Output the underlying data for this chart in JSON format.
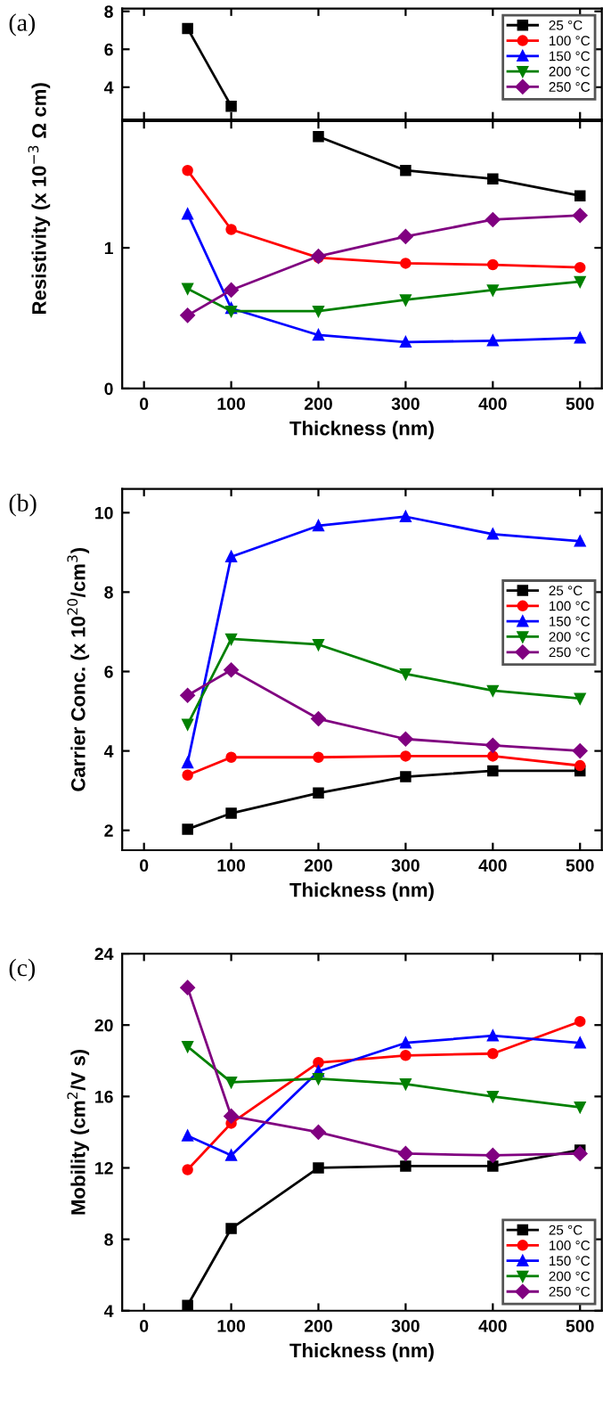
{
  "chart_data": [
    {
      "type": "line",
      "annotations": [
        "(a)"
      ],
      "xlim": [
        -25,
        525
      ],
      "xticks": [
        0,
        100,
        200,
        300,
        400,
        500
      ],
      "ylim": [
        2.3,
        8.15
      ],
      "yticks": [
        4,
        6,
        8
      ],
      "tick_labels": "y",
      "legend": "top right",
      "series": [
        {
          "name": "25 °C",
          "color": "#000000",
          "marker": "square",
          "x": [
            50,
            100
          ],
          "values": [
            7.1,
            3.0
          ]
        },
        {
          "name": "100 °C",
          "color": "#ff0000",
          "marker": "circle"
        },
        {
          "name": "150 °C",
          "color": "#0000ff",
          "marker": "triangle"
        },
        {
          "name": "200 °C",
          "color": "#008000",
          "marker": "triangle_down"
        },
        {
          "name": "250 °C",
          "color": "#800080",
          "marker": "diamond"
        }
      ]
    },
    {
      "type": "line",
      "xlabel": "Thickness (nm)",
      "ylabel": "Resistivity (x 10$^{−3}$ Ω cm)",
      "x": [
        50,
        100,
        200,
        300,
        400,
        500
      ],
      "xlim": [
        -25,
        525
      ],
      "xticks": [
        0,
        100,
        200,
        300,
        400,
        500
      ],
      "ylim": [
        0,
        1.9
      ],
      "yticks": [
        0,
        1
      ],
      "series": [
        {
          "color": "#000000",
          "marker": "square",
          "values": [
            null,
            null,
            1.79,
            1.55,
            1.49,
            1.37
          ]
        },
        {
          "color": "#ff0000",
          "marker": "circle",
          "values": [
            1.55,
            1.13,
            0.93,
            0.89,
            0.88,
            0.86
          ]
        },
        {
          "color": "#0000ff",
          "marker": "triangle",
          "values": [
            1.24,
            0.57,
            0.38,
            0.33,
            0.34,
            0.36
          ]
        },
        {
          "color": "#008000",
          "marker": "triangle_down",
          "values": [
            0.71,
            0.55,
            0.55,
            0.63,
            0.7,
            0.76
          ]
        },
        {
          "color": "#800080",
          "marker": "diamond",
          "values": [
            0.52,
            0.7,
            0.94,
            1.08,
            1.2,
            1.23
          ]
        }
      ]
    },
    {
      "type": "line",
      "annotations": [
        "(b)"
      ],
      "xlabel": "Thickness (nm)",
      "ylabel": "Carrier Conc. (x 10$^{20}$/cm$^{3}$)",
      "x": [
        50,
        100,
        200,
        300,
        400,
        500
      ],
      "xlim": [
        -25,
        525
      ],
      "xticks": [
        0,
        100,
        200,
        300,
        400,
        500
      ],
      "ylim": [
        1.5,
        10.6
      ],
      "yticks": [
        2,
        4,
        6,
        8,
        10
      ],
      "legend": "right",
      "series": [
        {
          "name": "25 °C",
          "color": "#000000",
          "marker": "square",
          "values": [
            2.03,
            2.43,
            2.94,
            3.35,
            3.5,
            3.5
          ]
        },
        {
          "name": "100 °C",
          "color": "#ff0000",
          "marker": "circle",
          "values": [
            3.39,
            3.84,
            3.84,
            3.87,
            3.87,
            3.63
          ]
        },
        {
          "name": "150 °C",
          "color": "#0000ff",
          "marker": "triangle",
          "values": [
            3.7,
            8.89,
            9.67,
            9.9,
            9.46,
            9.28
          ]
        },
        {
          "name": "200 °C",
          "color": "#008000",
          "marker": "triangle_down",
          "values": [
            4.67,
            6.82,
            6.68,
            5.94,
            5.52,
            5.32
          ]
        },
        {
          "name": "250 °C",
          "color": "#800080",
          "marker": "diamond",
          "values": [
            5.4,
            6.04,
            4.81,
            4.3,
            4.14,
            4.0
          ]
        }
      ]
    },
    {
      "type": "line",
      "annotations": [
        "(c)"
      ],
      "xlabel": "Thickness (nm)",
      "ylabel": "Mobility (cm$^{2}$/V s)",
      "x": [
        50,
        100,
        200,
        300,
        400,
        500
      ],
      "xlim": [
        -25,
        525
      ],
      "xticks": [
        0,
        100,
        200,
        300,
        400,
        500
      ],
      "ylim": [
        4,
        24
      ],
      "yticks": [
        4,
        8,
        12,
        16,
        20,
        24
      ],
      "legend": "bottom right",
      "series": [
        {
          "name": "25 °C",
          "color": "#000000",
          "marker": "square",
          "values": [
            4.3,
            8.6,
            12.0,
            12.1,
            12.1,
            13.0
          ]
        },
        {
          "name": "100 °C",
          "color": "#ff0000",
          "marker": "circle",
          "values": [
            11.9,
            14.5,
            17.9,
            18.3,
            18.4,
            20.2
          ]
        },
        {
          "name": "150 °C",
          "color": "#0000ff",
          "marker": "triangle",
          "values": [
            13.8,
            12.7,
            17.4,
            19.0,
            19.4,
            19.0
          ]
        },
        {
          "name": "200 °C",
          "color": "#008000",
          "marker": "triangle_down",
          "values": [
            18.8,
            16.8,
            17.0,
            16.7,
            16.0,
            15.4
          ]
        },
        {
          "name": "250 °C",
          "color": "#800080",
          "marker": "diamond",
          "values": [
            22.1,
            14.9,
            14.0,
            12.8,
            12.7,
            12.8
          ]
        }
      ]
    }
  ]
}
